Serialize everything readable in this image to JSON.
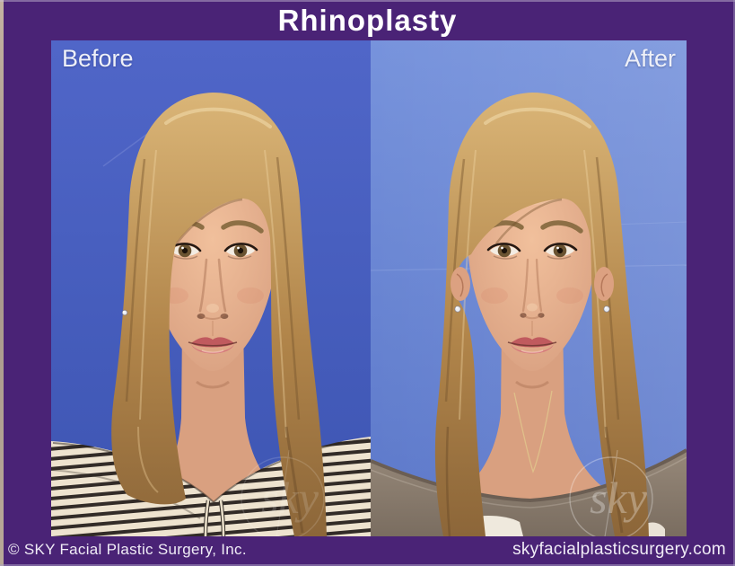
{
  "title": "Rhinoplasty",
  "photos": {
    "before_label": "Before",
    "after_label": "After"
  },
  "footer": {
    "copyright": "© SKY Facial Plastic Surgery, Inc.",
    "website": "skyfacialplasticsurgery.com"
  },
  "watermark_text": "sky",
  "colors": {
    "frame_purple": "#4a2376",
    "title_text": "#ffffff",
    "before_bg_top": "#5066c8",
    "before_bg_bottom": "#3d55b2",
    "after_bg_top": "#7793dc",
    "after_bg_bottom": "#5b77c9"
  }
}
